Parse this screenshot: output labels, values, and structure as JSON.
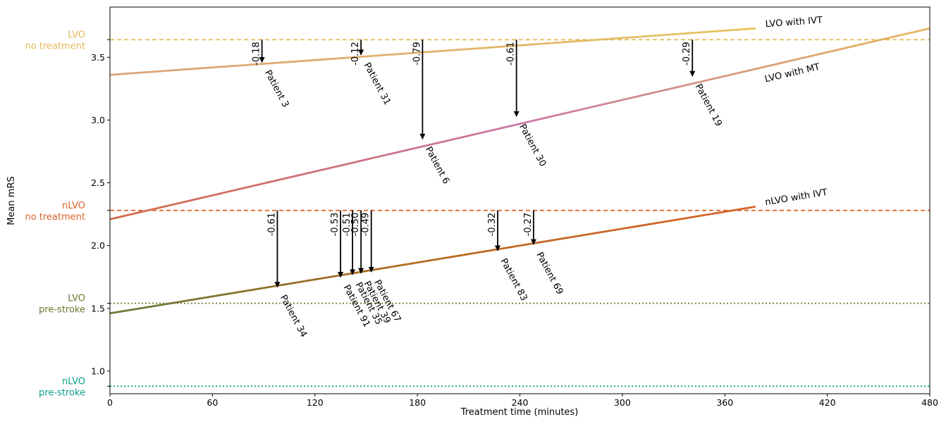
{
  "chart_data": {
    "type": "line",
    "xlabel": "Treatment time (minutes)",
    "ylabel": "Mean mRS",
    "xlim": [
      0,
      480
    ],
    "ylim": [
      0.82,
      3.9
    ],
    "x_ticks": [
      {
        "value": 0,
        "label": "0"
      },
      {
        "value": 60,
        "label": "60"
      },
      {
        "value": 120,
        "label": "120"
      },
      {
        "value": 180,
        "label": "180"
      },
      {
        "value": 240,
        "label": "240"
      },
      {
        "value": 300,
        "label": "300"
      },
      {
        "value": 360,
        "label": "360"
      },
      {
        "value": 420,
        "label": "420"
      },
      {
        "value": 480,
        "label": "480"
      }
    ],
    "y_ticks": [
      {
        "value": 1.0,
        "label": "1.0"
      },
      {
        "value": 1.5,
        "label": "1.5"
      },
      {
        "value": 2.0,
        "label": "2.0"
      },
      {
        "value": 2.5,
        "label": "2.5"
      },
      {
        "value": 3.0,
        "label": "3.0"
      },
      {
        "value": 3.5,
        "label": "3.5"
      }
    ],
    "reference_lines": [
      {
        "id": "lvo-no-treatment",
        "line1": "LVO",
        "line2": "no treatment",
        "y": 3.64,
        "color": "#e6b85a",
        "style": "dashed"
      },
      {
        "id": "nlvo-no-treatment",
        "line1": "nLVO",
        "line2": "no treatment",
        "y": 2.28,
        "color": "#d9622b",
        "style": "dashed"
      },
      {
        "id": "lvo-pre-stroke",
        "line1": "LVO",
        "line2": "pre-stroke",
        "y": 1.54,
        "color": "#6b7a2f",
        "style": "dotted"
      },
      {
        "id": "nlvo-pre-stroke",
        "line1": "nLVO",
        "line2": "pre-stroke",
        "y": 0.88,
        "color": "#0a9e87",
        "style": "dotted"
      }
    ],
    "series": [
      {
        "name": "LVO with IVT",
        "x": [
          0,
          378
        ],
        "y": [
          3.36,
          3.73
        ],
        "color_start": "#d9a37a",
        "color_end": "#e6c45e"
      },
      {
        "name": "LVO with MT",
        "x": [
          0,
          480
        ],
        "y": [
          2.21,
          3.73
        ],
        "color_start": "#d46a4a",
        "color_mid": "#c979a6",
        "color_end": "#e6b85a"
      },
      {
        "name": "nLVO with IVT",
        "x": [
          0,
          378
        ],
        "y": [
          1.46,
          2.31
        ],
        "color_start": "#6b7a3a",
        "color_end": "#d9622b"
      }
    ],
    "patients": [
      {
        "label": "Patient 3",
        "x": 89,
        "from": 3.64,
        "to": 3.46,
        "delta": "-0.18"
      },
      {
        "label": "Patient 31",
        "x": 147,
        "from": 3.64,
        "to": 3.52,
        "delta": "-0.12"
      },
      {
        "label": "Patient 6",
        "x": 183,
        "from": 3.64,
        "to": 2.85,
        "delta": "-0.79"
      },
      {
        "label": "Patient 30",
        "x": 238,
        "from": 3.64,
        "to": 3.03,
        "delta": "-0.61"
      },
      {
        "label": "Patient 19",
        "x": 341,
        "from": 3.64,
        "to": 3.35,
        "delta": "-0.29"
      },
      {
        "label": "Patient 34",
        "x": 98,
        "from": 2.28,
        "to": 1.67,
        "delta": "-0.61"
      },
      {
        "label": "Patient 91",
        "x": 135,
        "from": 2.28,
        "to": 1.75,
        "delta": "-0.53"
      },
      {
        "label": "Patient 35",
        "x": 142,
        "from": 2.28,
        "to": 1.77,
        "delta": "-0.51"
      },
      {
        "label": "Patient 39",
        "x": 147,
        "from": 2.28,
        "to": 1.78,
        "delta": "-0.50"
      },
      {
        "label": "Patient 67",
        "x": 153,
        "from": 2.28,
        "to": 1.79,
        "delta": "-0.49"
      },
      {
        "label": "Patient 83",
        "x": 227,
        "from": 2.28,
        "to": 1.96,
        "delta": "-0.32"
      },
      {
        "label": "Patient 69",
        "x": 248,
        "from": 2.28,
        "to": 2.01,
        "delta": "-0.27"
      }
    ]
  }
}
